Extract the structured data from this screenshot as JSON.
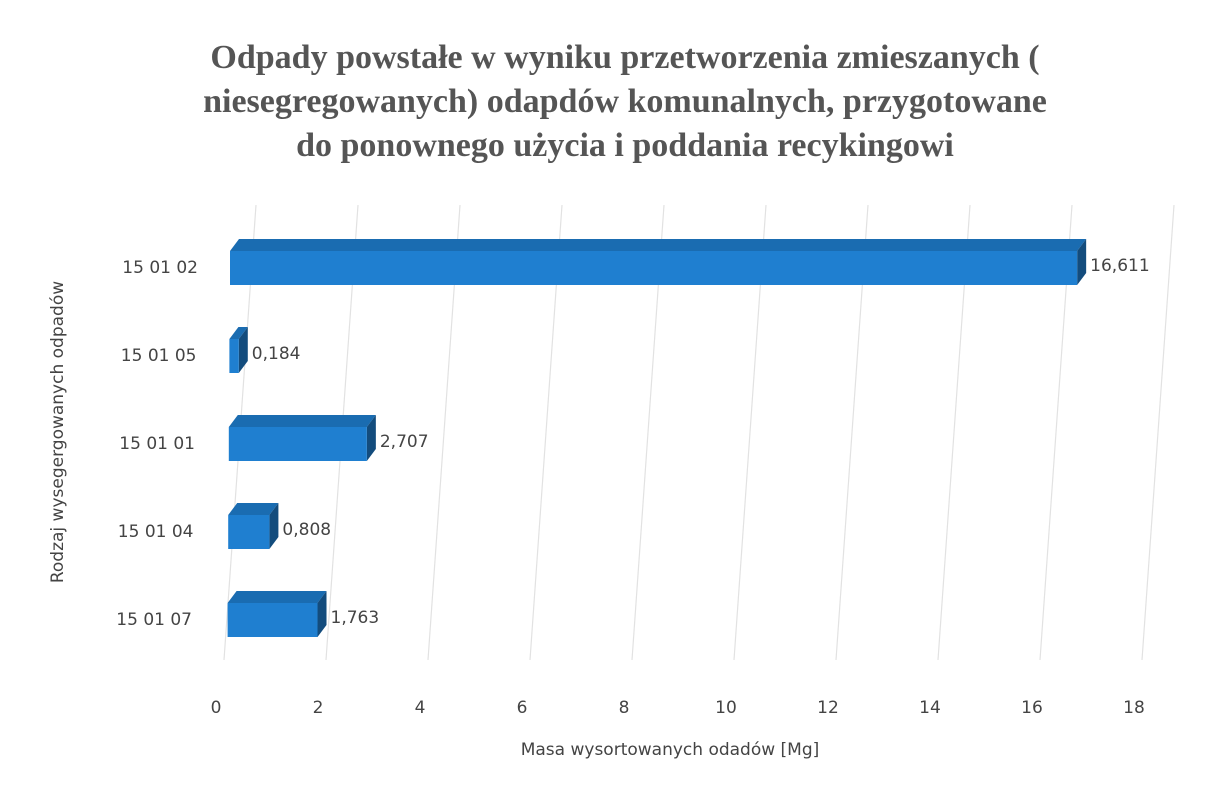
{
  "chart_data": {
    "type": "bar3d_horizontal",
    "title": [
      "Odpady powstałe w wyniku przetworzenia zmieszanych (",
      "niesegregowanych) odapdów komunalnych, przygotowane",
      "do ponownego użycia i poddania recykingowi"
    ],
    "x_label": "Masa wysortowanych odadów [Mg]",
    "y_label": "Rodzaj wysegergowanych odpadów",
    "categories": [
      "15 01 02",
      "15 01 05",
      "15 01 01",
      "15 01 04",
      "15 01 07"
    ],
    "values": [
      16.611,
      0.184,
      2.707,
      0.808,
      1.763
    ],
    "value_labels": [
      "16,611",
      "0,184",
      "2,707",
      "0,808",
      "1,763"
    ],
    "color": "#1f7fd0",
    "xlim": [
      0,
      18
    ],
    "xticks": [
      0,
      2,
      4,
      6,
      8,
      10,
      12,
      14,
      16,
      18
    ],
    "grid": true
  }
}
